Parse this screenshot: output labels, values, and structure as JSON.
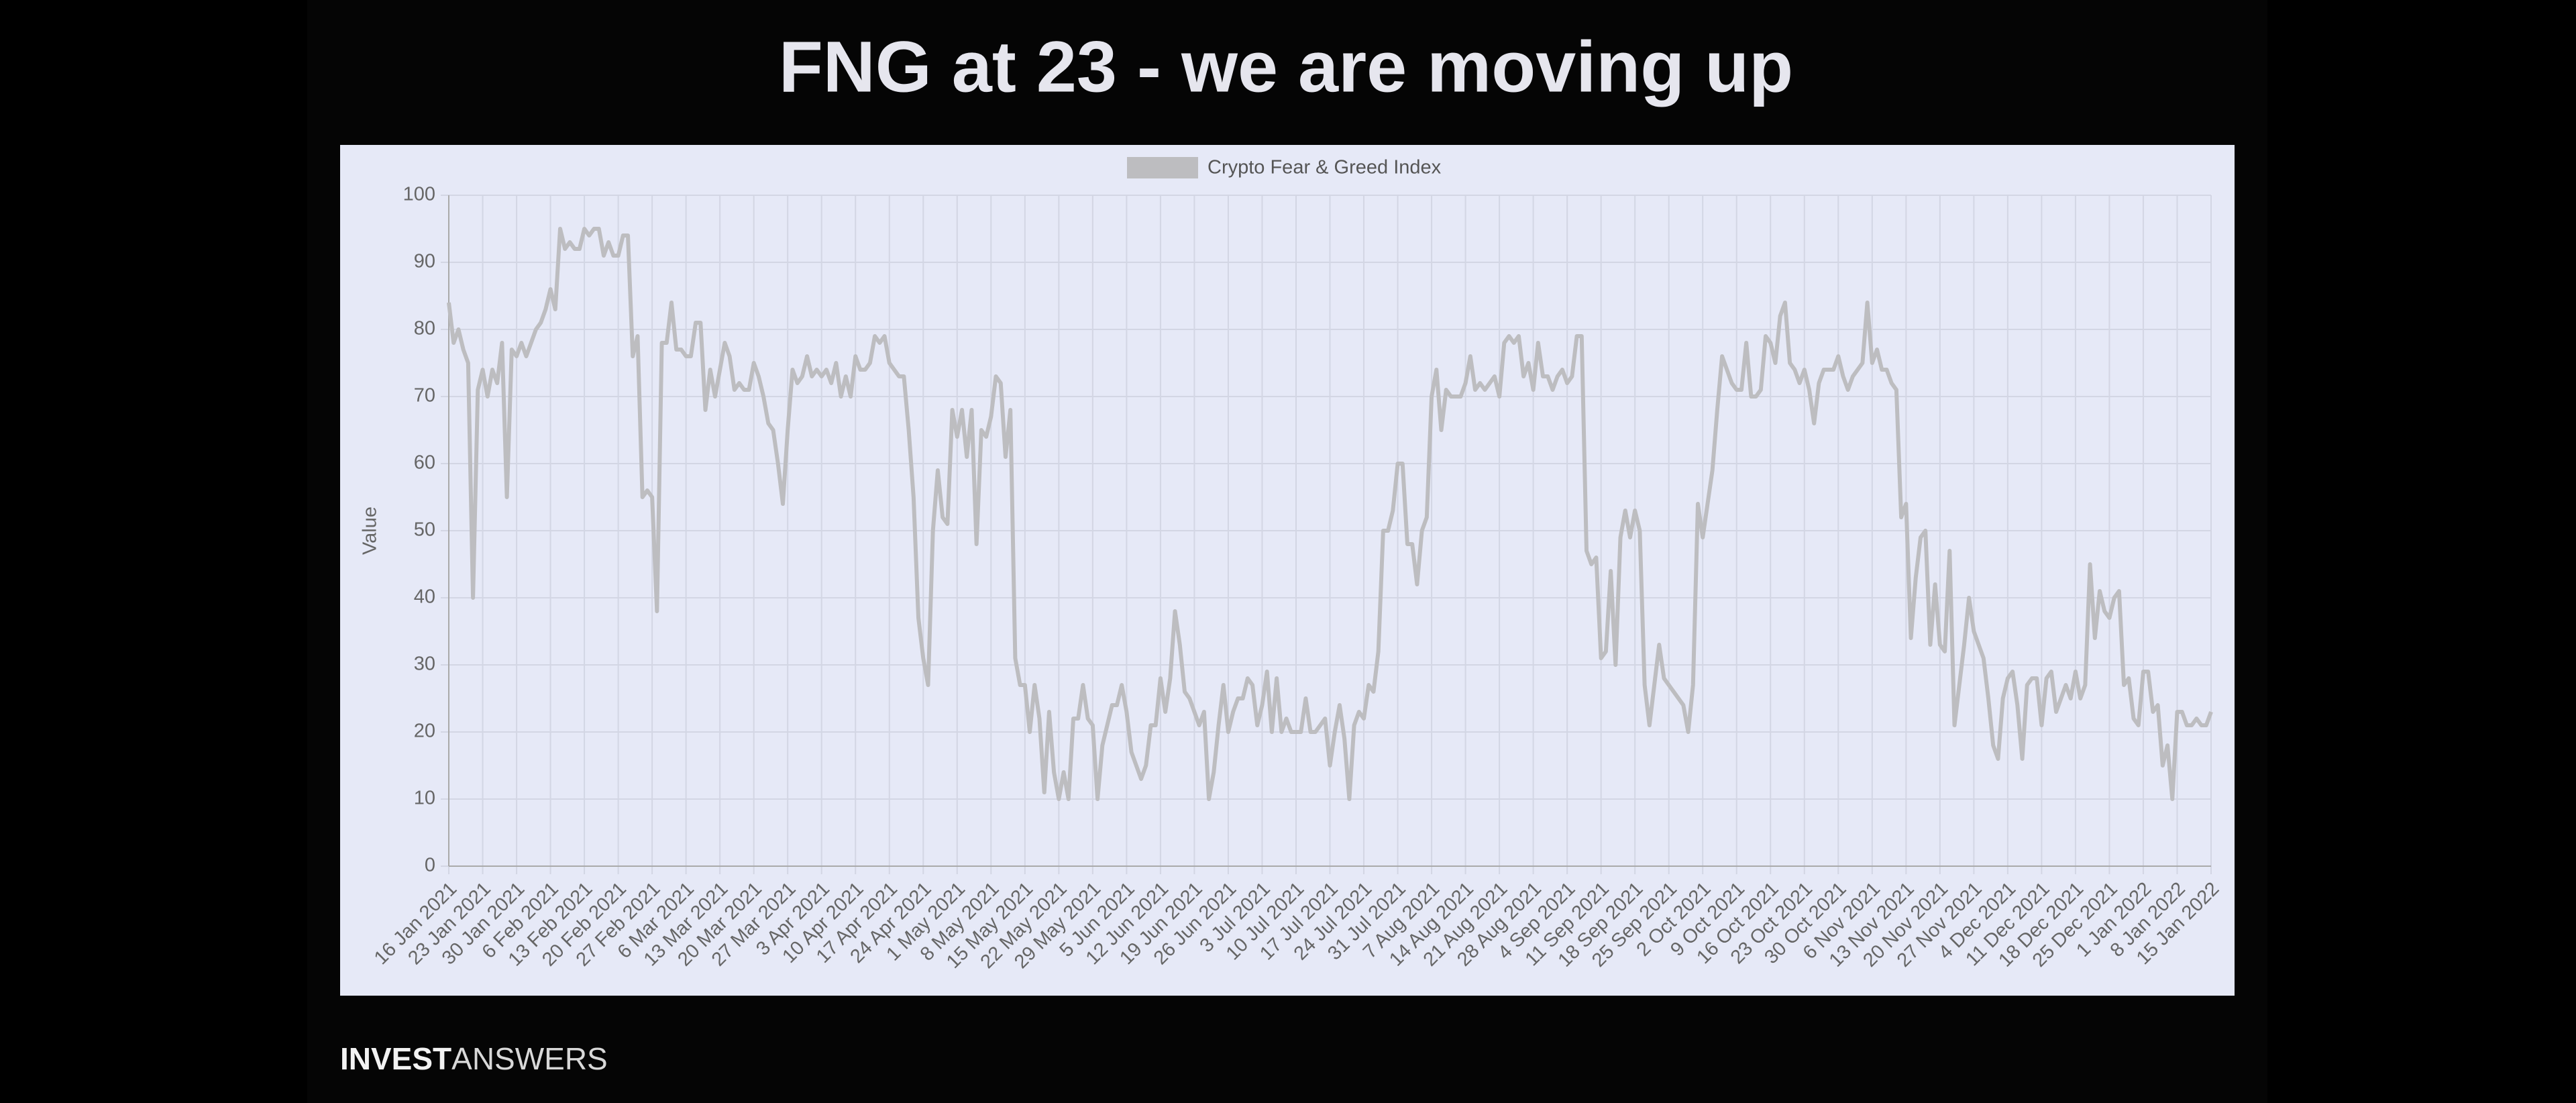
{
  "chart_data": {
    "type": "line",
    "title": "FNG at 23 - we are moving up",
    "y_label": "Value",
    "footer": {
      "bold": "INVEST",
      "light": "ANSWERS"
    },
    "ylim": [
      0,
      100
    ],
    "yticks": [
      0,
      10,
      20,
      30,
      40,
      50,
      60,
      70,
      80,
      90,
      100
    ],
    "grid": true,
    "legend": "top",
    "categories": [
      "16 Jan 2021",
      null,
      null,
      null,
      null,
      null,
      null,
      "23 Jan 2021",
      null,
      null,
      null,
      null,
      null,
      null,
      "30 Jan 2021",
      null,
      null,
      null,
      null,
      null,
      null,
      "6 Feb 2021",
      null,
      null,
      null,
      null,
      null,
      null,
      "13 Feb 2021",
      null,
      null,
      null,
      null,
      null,
      null,
      "20 Feb 2021",
      null,
      null,
      null,
      null,
      null,
      null,
      "27 Feb 2021",
      null,
      null,
      null,
      null,
      null,
      null,
      "6 Mar 2021",
      null,
      null,
      null,
      null,
      null,
      null,
      "13 Mar 2021",
      null,
      null,
      null,
      null,
      null,
      null,
      "20 Mar 2021",
      null,
      null,
      null,
      null,
      null,
      null,
      "27 Mar 2021",
      null,
      null,
      null,
      null,
      null,
      null,
      "3 Apr 2021",
      null,
      null,
      null,
      null,
      null,
      null,
      "10 Apr 2021",
      null,
      null,
      null,
      null,
      null,
      null,
      "17 Apr 2021",
      null,
      null,
      null,
      null,
      null,
      null,
      "24 Apr 2021",
      null,
      null,
      null,
      null,
      null,
      null,
      "1 May 2021",
      null,
      null,
      null,
      null,
      null,
      null,
      "8 May 2021",
      null,
      null,
      null,
      null,
      null,
      null,
      "15 May 2021",
      null,
      null,
      null,
      null,
      null,
      null,
      "22 May 2021",
      null,
      null,
      null,
      null,
      null,
      null,
      "29 May 2021",
      null,
      null,
      null,
      null,
      null,
      null,
      "5 Jun 2021",
      null,
      null,
      null,
      null,
      null,
      null,
      "12 Jun 2021",
      null,
      null,
      null,
      null,
      null,
      null,
      "19 Jun 2021",
      null,
      null,
      null,
      null,
      null,
      null,
      "26 Jun 2021",
      null,
      null,
      null,
      null,
      null,
      null,
      "3 Jul 2021",
      null,
      null,
      null,
      null,
      null,
      null,
      "10 Jul 2021",
      null,
      null,
      null,
      null,
      null,
      null,
      "17 Jul 2021",
      null,
      null,
      null,
      null,
      null,
      null,
      "24 Jul 2021",
      null,
      null,
      null,
      null,
      null,
      null,
      "31 Jul 2021",
      null,
      null,
      null,
      null,
      null,
      null,
      "7 Aug 2021",
      null,
      null,
      null,
      null,
      null,
      null,
      "14 Aug 2021",
      null,
      null,
      null,
      null,
      null,
      null,
      "21 Aug 2021",
      null,
      null,
      null,
      null,
      null,
      null,
      "28 Aug 2021",
      null,
      null,
      null,
      null,
      null,
      null,
      "4 Sep 2021",
      null,
      null,
      null,
      null,
      null,
      null,
      "11 Sep 2021",
      null,
      null,
      null,
      null,
      null,
      null,
      "18 Sep 2021",
      null,
      null,
      null,
      null,
      null,
      null,
      "25 Sep 2021",
      null,
      null,
      null,
      null,
      null,
      null,
      "2 Oct 2021",
      null,
      null,
      null,
      null,
      null,
      null,
      "9 Oct 2021",
      null,
      null,
      null,
      null,
      null,
      null,
      "16 Oct 2021",
      null,
      null,
      null,
      null,
      null,
      null,
      "23 Oct 2021",
      null,
      null,
      null,
      null,
      null,
      null,
      "30 Oct 2021",
      null,
      null,
      null,
      null,
      null,
      null,
      "6 Nov 2021",
      null,
      null,
      null,
      null,
      null,
      null,
      "13 Nov 2021",
      null,
      null,
      null,
      null,
      null,
      null,
      "20 Nov 2021",
      null,
      null,
      null,
      null,
      null,
      null,
      "27 Nov 2021",
      null,
      null,
      null,
      null,
      null,
      null,
      "4 Dec 2021",
      null,
      null,
      null,
      null,
      null,
      null,
      "11 Dec 2021",
      null,
      null,
      null,
      null,
      null,
      null,
      "18 Dec 2021",
      null,
      null,
      null,
      null,
      null,
      null,
      "25 Dec 2021",
      null,
      null,
      null,
      null,
      null,
      null,
      "1 Jan 2022",
      null,
      null,
      null,
      null,
      null,
      null,
      "8 Jan 2022",
      null,
      null,
      null,
      null,
      null,
      null,
      "15 Jan 2022"
    ],
    "series": [
      {
        "name": "Crypto Fear & Greed Index",
        "color": "#bdbdc0",
        "values": [
          84,
          78,
          80,
          77,
          75,
          40,
          71,
          74,
          70,
          74,
          72,
          78,
          55,
          77,
          76,
          78,
          76,
          78,
          80,
          81,
          83,
          86,
          83,
          95,
          92,
          93,
          92,
          92,
          95,
          94,
          95,
          95,
          91,
          93,
          91,
          91,
          94,
          94,
          76,
          79,
          55,
          56,
          55,
          38,
          78,
          78,
          84,
          77,
          77,
          76,
          76,
          81,
          81,
          68,
          74,
          70,
          74,
          78,
          76,
          71,
          72,
          71,
          71,
          75,
          73,
          70,
          66,
          65,
          60,
          54,
          65,
          74,
          72,
          73,
          76,
          73,
          74,
          73,
          74,
          72,
          75,
          70,
          73,
          70,
          76,
          74,
          74,
          75,
          79,
          78,
          79,
          75,
          74,
          73,
          73,
          65,
          55,
          37,
          31,
          27,
          50,
          59,
          52,
          51,
          68,
          64,
          68,
          61,
          68,
          48,
          65,
          64,
          67,
          73,
          72,
          61,
          68,
          31,
          27,
          27,
          20,
          27,
          22,
          11,
          23,
          14,
          10,
          14,
          10,
          22,
          22,
          27,
          22,
          21,
          10,
          18,
          21,
          24,
          24,
          27,
          23,
          17,
          15,
          13,
          15,
          21,
          21,
          28,
          23,
          28,
          38,
          33,
          26,
          25,
          23,
          21,
          23,
          10,
          14,
          21,
          27,
          20,
          23,
          25,
          25,
          28,
          27,
          21,
          24,
          29,
          20,
          28,
          20,
          22,
          20,
          20,
          20,
          25,
          20,
          20,
          21,
          22,
          15,
          20,
          24,
          19,
          10,
          21,
          23,
          22,
          27,
          26,
          32,
          50,
          50,
          53,
          60,
          60,
          48,
          48,
          42,
          50,
          52,
          70,
          74,
          65,
          71,
          70,
          70,
          70,
          72,
          76,
          71,
          72,
          71,
          72,
          73,
          70,
          78,
          79,
          78,
          79,
          73,
          75,
          71,
          78,
          73,
          73,
          71,
          73,
          74,
          72,
          73,
          79,
          79,
          47,
          45,
          46,
          31,
          32,
          44,
          30,
          49,
          53,
          49,
          53,
          50,
          27,
          21,
          27,
          33,
          28,
          27,
          26,
          25,
          24,
          20,
          27,
          54,
          49,
          54,
          59,
          68,
          76,
          74,
          72,
          71,
          71,
          78,
          70,
          70,
          71,
          79,
          78,
          75,
          82,
          84,
          75,
          74,
          72,
          74,
          71,
          66,
          72,
          74,
          74,
          74,
          76,
          73,
          71,
          73,
          74,
          75,
          84,
          75,
          77,
          74,
          74,
          72,
          71,
          52,
          54,
          34,
          43,
          49,
          50,
          33,
          42,
          33,
          32,
          47,
          21,
          27,
          33,
          40,
          35,
          33,
          31,
          25,
          18,
          16,
          25,
          28,
          29,
          24,
          16,
          27,
          28,
          28,
          21,
          28,
          29,
          23,
          25,
          27,
          25,
          29,
          25,
          27,
          45,
          34,
          41,
          38,
          37,
          40,
          41,
          27,
          28,
          22,
          21,
          29,
          29,
          23,
          24,
          15,
          18,
          10,
          23,
          23,
          21,
          21,
          22,
          21,
          21,
          23
        ]
      }
    ]
  }
}
